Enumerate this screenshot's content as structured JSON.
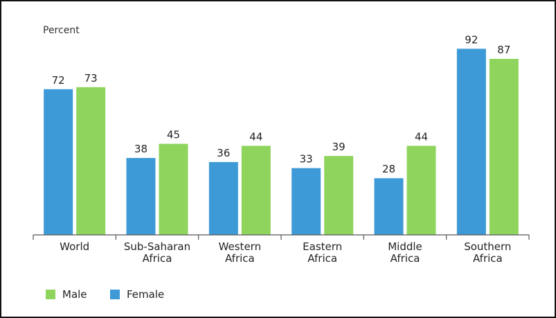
{
  "chart_data": {
    "type": "bar",
    "ylabel": "Percent",
    "ylim": [
      0,
      100
    ],
    "grid": false,
    "legend_position": "bottom-left",
    "categories": [
      [
        "World"
      ],
      [
        "Sub-Saharan",
        "Africa"
      ],
      [
        "Western",
        "Africa"
      ],
      [
        "Eastern",
        "Africa"
      ],
      [
        "Middle",
        "Africa"
      ],
      [
        "Southern",
        "Africa"
      ]
    ],
    "series": [
      {
        "name": "Female",
        "color": "#3d9ad6",
        "values": [
          72,
          38,
          36,
          33,
          28,
          92
        ]
      },
      {
        "name": "Male",
        "color": "#8fd45d",
        "values": [
          73,
          45,
          44,
          39,
          44,
          87
        ]
      }
    ],
    "legend": [
      {
        "name": "Male",
        "color": "#8fd45d"
      },
      {
        "name": "Female",
        "color": "#3d9ad6"
      }
    ]
  }
}
